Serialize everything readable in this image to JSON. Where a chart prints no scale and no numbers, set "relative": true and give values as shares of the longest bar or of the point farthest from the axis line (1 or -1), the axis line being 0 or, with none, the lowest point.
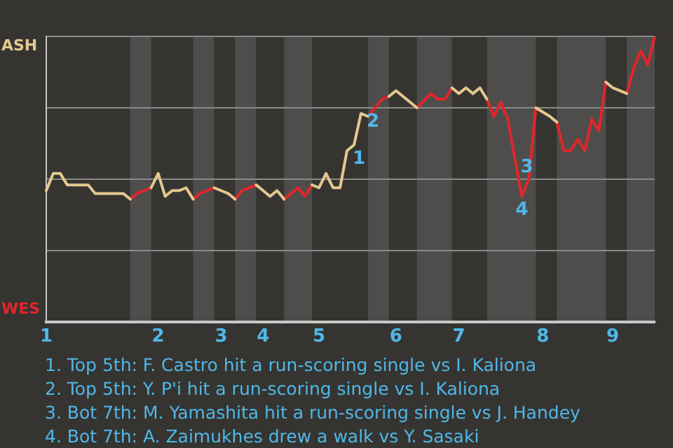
{
  "chart_data": {
    "type": "line",
    "relative": true,
    "categories": [
      "1",
      null,
      null,
      null,
      null,
      null,
      null,
      null,
      null,
      null,
      null,
      null,
      null,
      null,
      null,
      null,
      "2",
      null,
      null,
      null,
      null,
      null,
      null,
      null,
      null,
      "3",
      null,
      null,
      null,
      null,
      null,
      "4",
      null,
      null,
      null,
      null,
      null,
      null,
      null,
      "5",
      null,
      null,
      null,
      null,
      null,
      null,
      null,
      null,
      null,
      null,
      "6",
      null,
      null,
      null,
      null,
      null,
      null,
      null,
      null,
      "7",
      null,
      null,
      null,
      null,
      null,
      null,
      null,
      null,
      null,
      null,
      null,
      "8",
      null,
      null,
      null,
      null,
      null,
      null,
      null,
      null,
      null,
      "9",
      null,
      null,
      null,
      null,
      null,
      null
    ],
    "series": [
      {
        "color": "#e3c88f",
        "values": [
          0.46,
          0.52,
          0.52,
          0.48,
          null,
          null,
          0.48,
          0.45,
          null,
          null,
          null,
          0.45,
          0.43,
          null,
          null,
          0.47,
          0.52,
          0.44,
          0.46,
          0.46,
          0.47,
          0.43,
          null,
          null,
          0.47,
          null,
          0.45,
          0.43,
          null,
          null,
          0.48,
          0.46,
          0.44,
          0.46,
          0.43,
          null,
          null,
          null,
          0.48,
          0.47,
          0.52,
          0.47,
          0.47,
          0.6,
          0.62,
          0.73,
          0.72,
          null,
          null,
          0.79,
          0.81,
          null,
          null,
          0.75,
          null,
          null,
          null,
          null,
          0.82,
          0.8,
          0.82,
          0.8,
          0.82,
          0.78,
          null,
          null,
          null,
          null,
          null,
          null,
          0.75,
          null,
          0.72,
          0.7,
          null,
          null,
          null,
          null,
          null,
          null,
          0.84,
          0.82,
          null,
          0.8,
          null,
          null,
          null,
          null
        ]
      },
      {
        "color": "#e0262a",
        "values": [
          null,
          null,
          null,
          null,
          null,
          null,
          null,
          null,
          null,
          null,
          null,
          null,
          0.43,
          0.45,
          null,
          0.47,
          null,
          null,
          null,
          null,
          null,
          0.43,
          0.45,
          null,
          0.47,
          null,
          null,
          0.43,
          0.46,
          null,
          0.48,
          null,
          null,
          null,
          0.43,
          0.45,
          0.47,
          0.44,
          0.48,
          null,
          null,
          null,
          null,
          null,
          null,
          null,
          0.72,
          null,
          0.78,
          0.79,
          null,
          null,
          null,
          0.75,
          null,
          0.8,
          0.78,
          0.78,
          0.82,
          null,
          null,
          null,
          null,
          0.78,
          0.72,
          0.77,
          0.71,
          0.57,
          0.44,
          0.5,
          0.75,
          null,
          null,
          0.7,
          0.6,
          0.6,
          0.64,
          0.6,
          0.71,
          0.67,
          0.84,
          null,
          null,
          0.8,
          0.89,
          0.95,
          0.9,
          1
        ]
      }
    ],
    "grid": "y",
    "marker": "none",
    "line_style": "solid",
    "annotations": [
      "ASH",
      "WES",
      {
        "text": "1",
        "y": 0.6
      },
      {
        "text": "2",
        "y": 0.73
      },
      {
        "text": "3",
        "y": 0.57
      },
      {
        "text": "4",
        "y": 0.44
      },
      "1. Top 5th: F. Castro hit a run-scoring single vs I. Kaliona",
      "2. Top 5th: Y. P'i hit a run-scoring single vs I. Kaliona",
      "3. Bot 7th: M. Yamashita hit a run-scoring single vs J. Handey",
      "4. Bot 7th: A. Zaimukhes drew a walk vs Y. Sasaki"
    ]
  }
}
